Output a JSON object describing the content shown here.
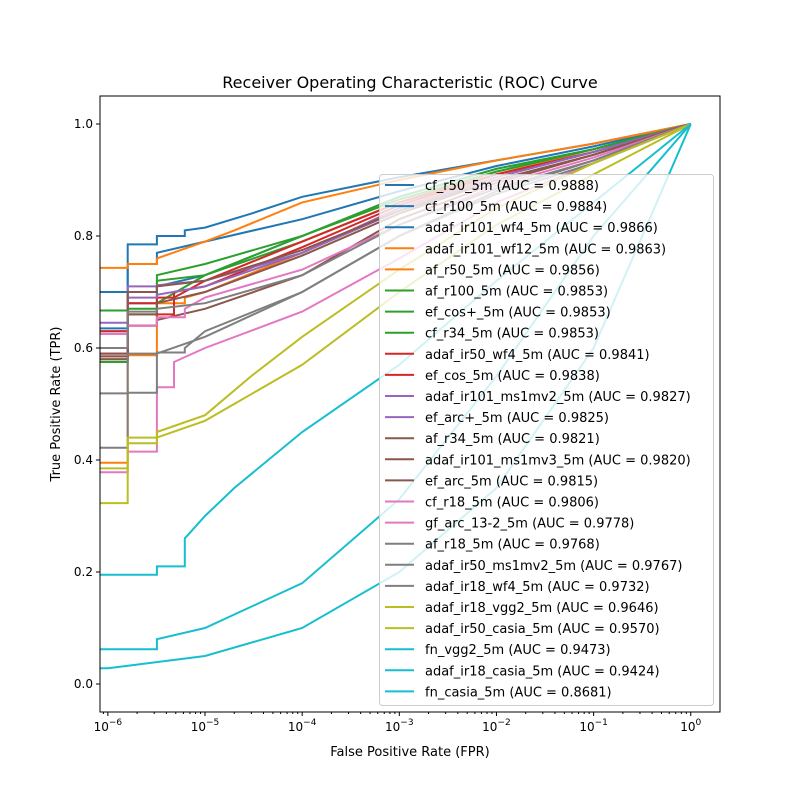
{
  "chart_data": {
    "type": "line",
    "title": "Receiver Operating Characteristic (ROC) Curve",
    "xlabel": "False Positive Rate (FPR)",
    "ylabel": "True Positive Rate (TPR)",
    "xscale": "log",
    "xlim": [
      8.3e-07,
      2.0
    ],
    "ylim": [
      -0.05,
      1.05
    ],
    "xticks": [
      {
        "value": 1e-06,
        "base": "10",
        "exp": "−6"
      },
      {
        "value": 1e-05,
        "base": "10",
        "exp": "−5"
      },
      {
        "value": 0.0001,
        "base": "10",
        "exp": "−4"
      },
      {
        "value": 0.001,
        "base": "10",
        "exp": "−3"
      },
      {
        "value": 0.01,
        "base": "10",
        "exp": "−2"
      },
      {
        "value": 0.1,
        "base": "10",
        "exp": "−1"
      },
      {
        "value": 1,
        "base": "10",
        "exp": "0"
      }
    ],
    "yticks": [
      {
        "value": 0.0,
        "label": "0.0"
      },
      {
        "value": 0.2,
        "label": "0.2"
      },
      {
        "value": 0.4,
        "label": "0.4"
      },
      {
        "value": 0.6,
        "label": "0.6"
      },
      {
        "value": 0.8,
        "label": "0.8"
      },
      {
        "value": 1.0,
        "label": "1.0"
      }
    ],
    "grid": false,
    "legend_position": "lower-right",
    "series": [
      {
        "name": "cf_r50_5m (AUC = 0.9888)",
        "color": "#1f77b4",
        "points": [
          [
            1e-06,
            0.7
          ],
          [
            1.6e-06,
            0.785
          ],
          [
            3.2e-06,
            0.8
          ],
          [
            6.2e-06,
            0.81
          ],
          [
            1e-05,
            0.815
          ],
          [
            3e-05,
            0.84
          ],
          [
            0.0001,
            0.87
          ],
          [
            0.001,
            0.905
          ],
          [
            0.01,
            0.935
          ],
          [
            0.1,
            0.965
          ],
          [
            1,
            1
          ]
        ]
      },
      {
        "name": "cf_r100_5m (AUC = 0.9884)",
        "color": "#1f77b4",
        "points": [
          [
            1e-06,
            0.635
          ],
          [
            1.6e-06,
            0.75
          ],
          [
            3.2e-06,
            0.77
          ],
          [
            1e-05,
            0.79
          ],
          [
            0.0001,
            0.83
          ],
          [
            0.001,
            0.88
          ],
          [
            0.01,
            0.925
          ],
          [
            0.1,
            0.96
          ],
          [
            1,
            1
          ]
        ]
      },
      {
        "name": "adaf_ir101_wf4_5m (AUC = 0.9866)",
        "color": "#1f77b4",
        "points": [
          [
            1e-06,
            0.63
          ],
          [
            1.6e-06,
            0.68
          ],
          [
            3.2e-06,
            0.71
          ],
          [
            1e-05,
            0.73
          ],
          [
            0.0001,
            0.8
          ],
          [
            0.001,
            0.87
          ],
          [
            0.01,
            0.92
          ],
          [
            0.1,
            0.955
          ],
          [
            1,
            1
          ]
        ]
      },
      {
        "name": "adaf_ir101_wf12_5m (AUC = 0.9863)",
        "color": "#ff7f0e",
        "points": [
          [
            1e-06,
            0.743
          ],
          [
            1.6e-06,
            0.75
          ],
          [
            3.2e-06,
            0.76
          ],
          [
            1e-05,
            0.79
          ],
          [
            2e-05,
            0.81
          ],
          [
            0.0001,
            0.86
          ],
          [
            0.001,
            0.9
          ],
          [
            0.01,
            0.935
          ],
          [
            0.1,
            0.965
          ],
          [
            1,
            1
          ]
        ]
      },
      {
        "name": "af_r50_5m (AUC = 0.9856)",
        "color": "#ff7f0e",
        "points": [
          [
            1e-06,
            0.395
          ],
          [
            1.6e-06,
            0.587
          ],
          [
            3.2e-06,
            0.68
          ],
          [
            6.2e-06,
            0.69
          ],
          [
            1e-05,
            0.7
          ],
          [
            0.0001,
            0.77
          ],
          [
            0.001,
            0.85
          ],
          [
            0.01,
            0.91
          ],
          [
            0.1,
            0.955
          ],
          [
            1,
            1
          ]
        ]
      },
      {
        "name": "af_r100_5m (AUC = 0.9853)",
        "color": "#2ca02c",
        "points": [
          [
            1e-06,
            0.667
          ],
          [
            1.6e-06,
            0.7
          ],
          [
            3.2e-06,
            0.73
          ],
          [
            1e-05,
            0.75
          ],
          [
            0.0001,
            0.8
          ],
          [
            0.001,
            0.87
          ],
          [
            0.01,
            0.92
          ],
          [
            0.1,
            0.955
          ],
          [
            1,
            1
          ]
        ]
      },
      {
        "name": "ef_cos+_5m (AUC = 0.9853)",
        "color": "#2ca02c",
        "points": [
          [
            1e-06,
            0.58
          ],
          [
            1.6e-06,
            0.66
          ],
          [
            3.2e-06,
            0.68
          ],
          [
            1e-05,
            0.73
          ],
          [
            0.0001,
            0.8
          ],
          [
            0.001,
            0.865
          ],
          [
            0.01,
            0.915
          ],
          [
            0.1,
            0.955
          ],
          [
            1,
            1
          ]
        ]
      },
      {
        "name": "cf_r34_5m (AUC = 0.9853)",
        "color": "#2ca02c",
        "points": [
          [
            1e-06,
            0.575
          ],
          [
            1.6e-06,
            0.67
          ],
          [
            3.2e-06,
            0.72
          ],
          [
            1e-05,
            0.73
          ],
          [
            0.0001,
            0.79
          ],
          [
            0.001,
            0.86
          ],
          [
            0.01,
            0.915
          ],
          [
            0.1,
            0.955
          ],
          [
            1,
            1
          ]
        ]
      },
      {
        "name": "adaf_ir50_wf4_5m (AUC = 0.9841)",
        "color": "#d62728",
        "points": [
          [
            1e-06,
            0.63
          ],
          [
            1.6e-06,
            0.64
          ],
          [
            3.2e-06,
            0.66
          ],
          [
            4.8e-06,
            0.69
          ],
          [
            1e-05,
            0.72
          ],
          [
            0.0001,
            0.79
          ],
          [
            0.001,
            0.86
          ],
          [
            0.01,
            0.91
          ],
          [
            0.1,
            0.95
          ],
          [
            1,
            1
          ]
        ]
      },
      {
        "name": "ef_cos_5m (AUC = 0.9838)",
        "color": "#d62728",
        "points": [
          [
            1e-06,
            0.59
          ],
          [
            1.6e-06,
            0.68
          ],
          [
            3.2e-06,
            0.69
          ],
          [
            4.8e-06,
            0.7
          ],
          [
            1e-05,
            0.71
          ],
          [
            0.0001,
            0.78
          ],
          [
            0.001,
            0.855
          ],
          [
            0.01,
            0.91
          ],
          [
            0.1,
            0.95
          ],
          [
            1,
            1
          ]
        ]
      },
      {
        "name": "adaf_ir101_ms1mv2_5m (AUC = 0.9827)",
        "color": "#9467bd",
        "points": [
          [
            1e-06,
            0.645
          ],
          [
            1.6e-06,
            0.71
          ],
          [
            3.2e-06,
            0.712
          ],
          [
            1e-05,
            0.72
          ],
          [
            0.0001,
            0.77
          ],
          [
            0.001,
            0.85
          ],
          [
            0.01,
            0.905
          ],
          [
            0.1,
            0.95
          ],
          [
            1,
            1
          ]
        ]
      },
      {
        "name": "ef_arc+_5m (AUC = 0.9825)",
        "color": "#9467bd",
        "points": [
          [
            1e-06,
            0.585
          ],
          [
            1.6e-06,
            0.69
          ],
          [
            3.2e-06,
            0.695
          ],
          [
            1e-05,
            0.71
          ],
          [
            0.0001,
            0.77
          ],
          [
            0.001,
            0.845
          ],
          [
            0.01,
            0.905
          ],
          [
            0.1,
            0.95
          ],
          [
            1,
            1
          ]
        ]
      },
      {
        "name": "af_r34_5m (AUC = 0.9821)",
        "color": "#8c564b",
        "points": [
          [
            1e-06,
            0.585
          ],
          [
            1.6e-06,
            0.7
          ],
          [
            3.2e-06,
            0.71
          ],
          [
            1e-05,
            0.72
          ],
          [
            0.0001,
            0.775
          ],
          [
            0.001,
            0.845
          ],
          [
            0.01,
            0.9
          ],
          [
            0.1,
            0.945
          ],
          [
            1,
            1
          ]
        ]
      },
      {
        "name": "adaf_ir101_ms1mv3_5m (AUC = 0.9820)",
        "color": "#8c564b",
        "points": [
          [
            1e-06,
            0.59
          ],
          [
            1.6e-06,
            0.66
          ],
          [
            3.2e-06,
            0.68
          ],
          [
            1e-05,
            0.7
          ],
          [
            0.0001,
            0.765
          ],
          [
            0.001,
            0.84
          ],
          [
            0.01,
            0.9
          ],
          [
            0.1,
            0.945
          ],
          [
            1,
            1
          ]
        ]
      },
      {
        "name": "ef_arc_5m (AUC = 0.9815)",
        "color": "#8c564b",
        "points": [
          [
            1e-06,
            0.58
          ],
          [
            1.6e-06,
            0.64
          ],
          [
            3.2e-06,
            0.65
          ],
          [
            1e-05,
            0.67
          ],
          [
            0.0001,
            0.73
          ],
          [
            0.001,
            0.83
          ],
          [
            0.01,
            0.895
          ],
          [
            0.1,
            0.945
          ],
          [
            1,
            1
          ]
        ]
      },
      {
        "name": "cf_r18_5m (AUC = 0.9806)",
        "color": "#e377c2",
        "points": [
          [
            1e-06,
            0.625
          ],
          [
            1.6e-06,
            0.64
          ],
          [
            3.2e-06,
            0.655
          ],
          [
            6.2e-06,
            0.67
          ],
          [
            1e-05,
            0.69
          ],
          [
            0.0001,
            0.74
          ],
          [
            0.001,
            0.82
          ],
          [
            0.01,
            0.89
          ],
          [
            0.1,
            0.94
          ],
          [
            1,
            1
          ]
        ]
      },
      {
        "name": "gf_arc_13-2_5m (AUC = 0.9778)",
        "color": "#e377c2",
        "points": [
          [
            1e-06,
            0.378
          ],
          [
            1.6e-06,
            0.415
          ],
          [
            3.2e-06,
            0.53
          ],
          [
            4.8e-06,
            0.575
          ],
          [
            1e-05,
            0.6
          ],
          [
            0.0001,
            0.665
          ],
          [
            0.001,
            0.76
          ],
          [
            0.01,
            0.86
          ],
          [
            0.1,
            0.93
          ],
          [
            1,
            1
          ]
        ]
      },
      {
        "name": "af_r18_5m (AUC = 0.9768)",
        "color": "#7f7f7f",
        "points": [
          [
            1e-06,
            0.519
          ],
          [
            1.6e-06,
            0.52
          ],
          [
            3.2e-06,
            0.59
          ],
          [
            1e-05,
            0.62
          ],
          [
            0.0001,
            0.7
          ],
          [
            0.001,
            0.8
          ],
          [
            0.01,
            0.88
          ],
          [
            0.1,
            0.935
          ],
          [
            1,
            1
          ]
        ]
      },
      {
        "name": "adaf_ir50_ms1mv2_5m (AUC = 0.9767)",
        "color": "#7f7f7f",
        "points": [
          [
            1e-06,
            0.422
          ],
          [
            1.6e-06,
            0.59
          ],
          [
            3.2e-06,
            0.592
          ],
          [
            6.2e-06,
            0.6
          ],
          [
            1e-05,
            0.63
          ],
          [
            0.0001,
            0.7
          ],
          [
            0.001,
            0.8
          ],
          [
            0.01,
            0.875
          ],
          [
            0.1,
            0.93
          ],
          [
            1,
            1
          ]
        ]
      },
      {
        "name": "adaf_ir18_wf4_5m (AUC = 0.9732)",
        "color": "#7f7f7f",
        "points": [
          [
            1e-06,
            0.6
          ],
          [
            1.6e-06,
            0.665
          ],
          [
            3.2e-06,
            0.67
          ],
          [
            1e-05,
            0.68
          ],
          [
            0.0001,
            0.73
          ],
          [
            0.001,
            0.82
          ],
          [
            0.01,
            0.885
          ],
          [
            0.1,
            0.935
          ],
          [
            1,
            1
          ]
        ]
      },
      {
        "name": "adaf_ir18_vgg2_5m (AUC = 0.9646)",
        "color": "#bcbd22",
        "points": [
          [
            1e-06,
            0.323
          ],
          [
            1.6e-06,
            0.44
          ],
          [
            3.2e-06,
            0.45
          ],
          [
            1e-05,
            0.48
          ],
          [
            3e-05,
            0.55
          ],
          [
            0.0001,
            0.62
          ],
          [
            0.001,
            0.74
          ],
          [
            0.01,
            0.85
          ],
          [
            0.1,
            0.93
          ],
          [
            1,
            1
          ]
        ]
      },
      {
        "name": "adaf_ir50_casia_5m (AUC = 0.9570)",
        "color": "#bcbd22",
        "points": [
          [
            1e-06,
            0.385
          ],
          [
            1.6e-06,
            0.43
          ],
          [
            3.2e-06,
            0.44
          ],
          [
            1e-05,
            0.47
          ],
          [
            0.0001,
            0.57
          ],
          [
            0.001,
            0.7
          ],
          [
            0.01,
            0.82
          ],
          [
            0.1,
            0.91
          ],
          [
            1,
            1
          ]
        ]
      },
      {
        "name": "fn_vgg2_5m (AUC = 0.9473)",
        "color": "#17becf",
        "points": [
          [
            1e-06,
            0.195
          ],
          [
            3.2e-06,
            0.21
          ],
          [
            6.2e-06,
            0.26
          ],
          [
            1e-05,
            0.3
          ],
          [
            2e-05,
            0.35
          ],
          [
            0.0001,
            0.45
          ],
          [
            0.001,
            0.57
          ],
          [
            0.01,
            0.72
          ],
          [
            0.1,
            0.86
          ],
          [
            1,
            1
          ]
        ]
      },
      {
        "name": "adaf_ir18_casia_5m (AUC = 0.9424)",
        "color": "#17becf",
        "points": [
          [
            1e-06,
            0.062
          ],
          [
            3.2e-06,
            0.08
          ],
          [
            1e-05,
            0.1
          ],
          [
            0.0001,
            0.18
          ],
          [
            0.001,
            0.33
          ],
          [
            0.01,
            0.55
          ],
          [
            0.1,
            0.8
          ],
          [
            1,
            1
          ]
        ]
      },
      {
        "name": "fn_casia_5m (AUC = 0.8681)",
        "color": "#17becf",
        "points": [
          [
            1e-06,
            0.028
          ],
          [
            1e-05,
            0.05
          ],
          [
            0.0001,
            0.1
          ],
          [
            0.001,
            0.2
          ],
          [
            0.01,
            0.35
          ],
          [
            0.1,
            0.6
          ],
          [
            1,
            1
          ]
        ]
      }
    ]
  }
}
